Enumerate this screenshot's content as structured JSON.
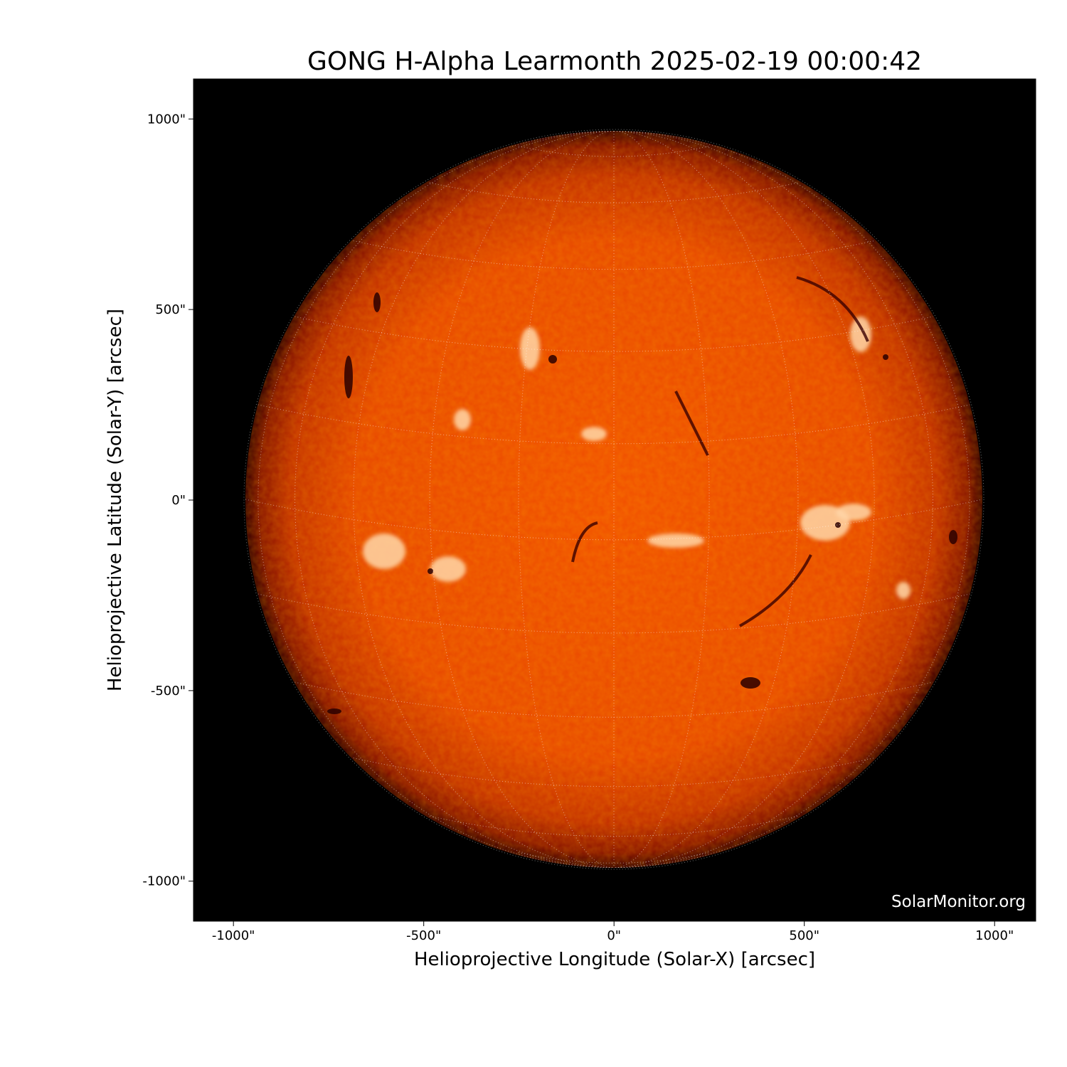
{
  "title": "GONG H-Alpha Learmonth 2025-02-19 00:00:42",
  "xlabel": "Helioprojective Longitude (Solar-X) [arcsec]",
  "ylabel": "Helioprojective Latitude (Solar-Y) [arcsec]",
  "watermark": "SolarMonitor.org",
  "axes": {
    "xlim": [
      -1105,
      1108
    ],
    "ylim": [
      -1105,
      1105
    ],
    "x_ticks": [
      {
        "value": -1000,
        "label": "-1000\""
      },
      {
        "value": -500,
        "label": "-500\""
      },
      {
        "value": 0,
        "label": "0\""
      },
      {
        "value": 500,
        "label": "500\""
      },
      {
        "value": 1000,
        "label": "1000\""
      }
    ],
    "y_ticks": [
      {
        "value": 1000,
        "label": "1000\""
      },
      {
        "value": 500,
        "label": "500\""
      },
      {
        "value": 0,
        "label": "0\""
      },
      {
        "value": -500,
        "label": "-500\""
      },
      {
        "value": -1000,
        "label": "-1000\""
      }
    ],
    "grid": "heliographic 15 deg dotted"
  },
  "image": {
    "solar_radius_arcsec": 968,
    "colormap": [
      "#000000",
      "#5a0500",
      "#c42a00",
      "#ff5a00",
      "#ffb070",
      "#ffffff"
    ]
  }
}
